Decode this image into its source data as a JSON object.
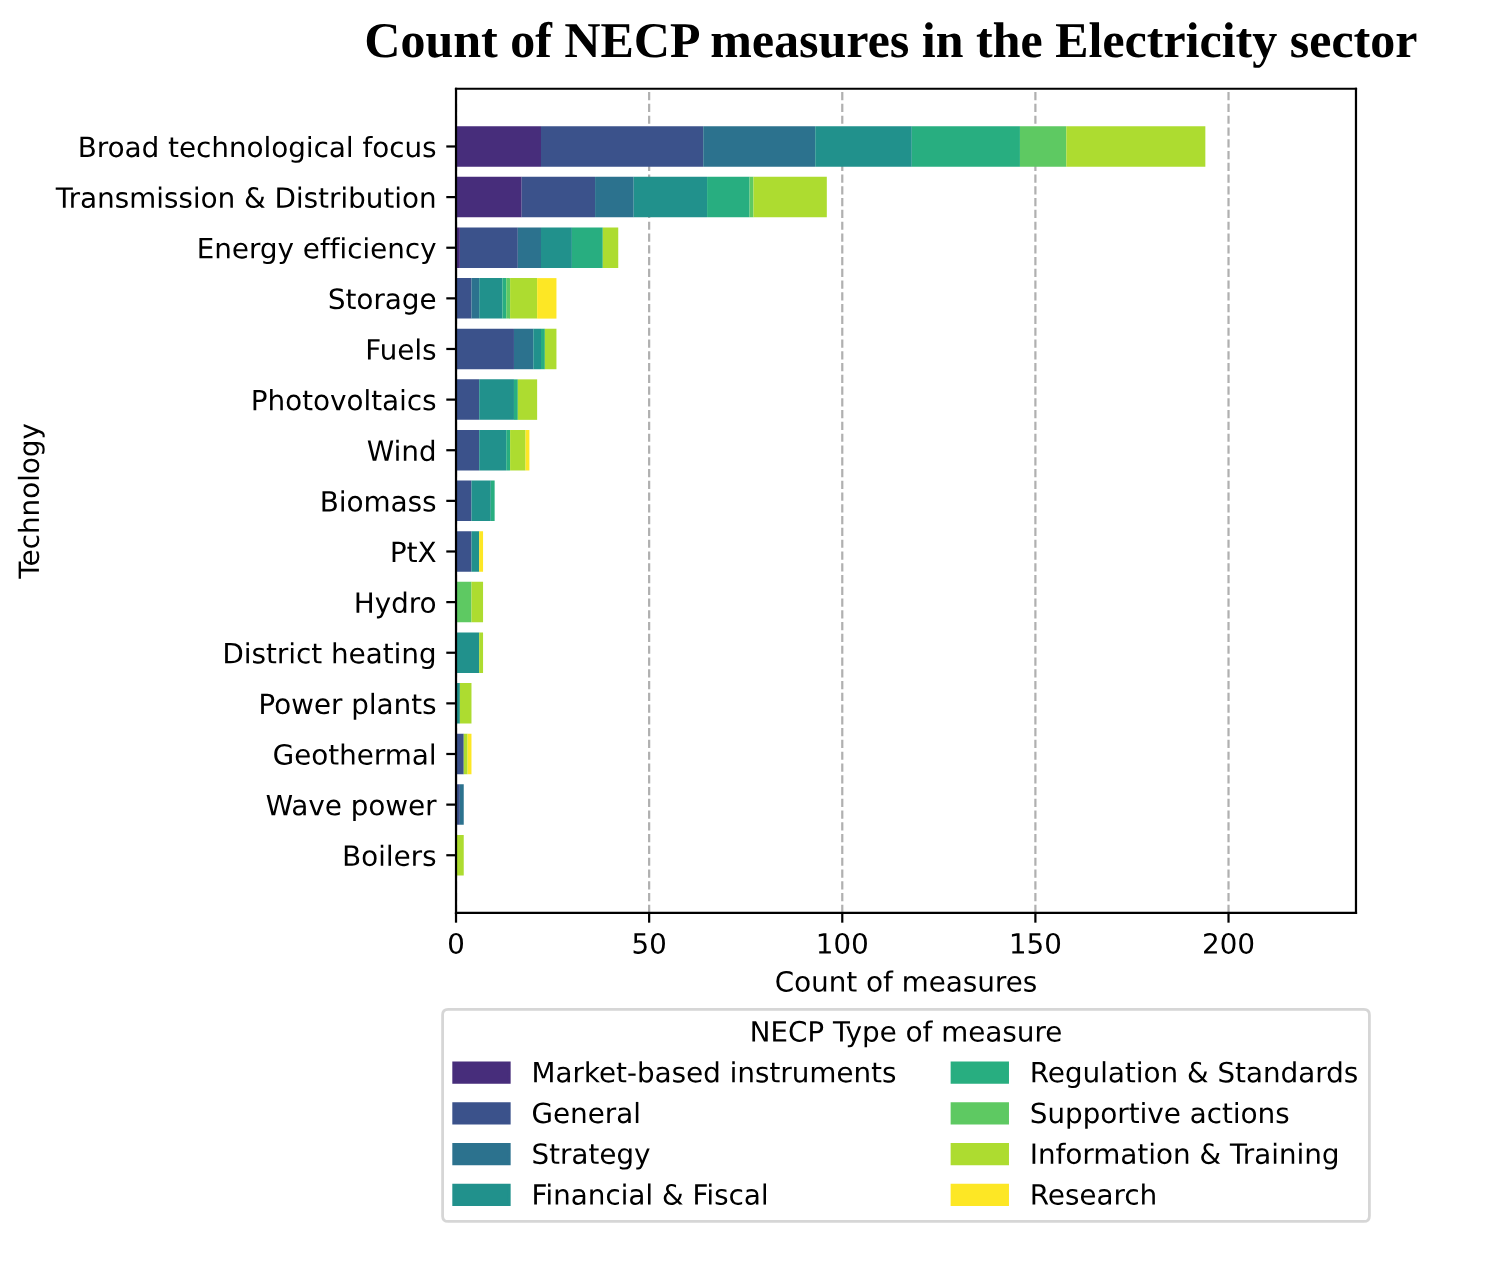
{
  "chart_data": {
    "type": "bar",
    "orientation": "horizontal",
    "stacked": true,
    "title": "Count of NECP measures in the Electricity sector",
    "xlabel": "Count of measures",
    "ylabel": "Technology",
    "legend_title": "NECP Type of measure",
    "legend": "bottom",
    "grid": "x",
    "categories": [
      "Broad technological focus",
      "Transmission & Distribution",
      "Energy efficiency",
      "Storage",
      "Fuels",
      "Photovoltaics",
      "Wind",
      "Biomass",
      "PtX",
      "Hydro",
      "District heating",
      "Power plants",
      "Geothermal",
      "Wave power",
      "Boilers"
    ],
    "xlim": [
      0,
      233
    ],
    "xticks": [
      0,
      50,
      100,
      150,
      200
    ],
    "series": [
      {
        "name": "Market-based instruments",
        "color": "#472d7b",
        "values": [
          22,
          17,
          1,
          0,
          0,
          0,
          0,
          0,
          0,
          0,
          0,
          0,
          0,
          0,
          0
        ]
      },
      {
        "name": "General",
        "color": "#3b528b",
        "values": [
          42,
          19,
          15,
          4,
          15,
          6,
          6,
          4,
          4,
          0,
          0,
          0,
          2,
          1,
          0
        ]
      },
      {
        "name": "Strategy",
        "color": "#2c728e",
        "values": [
          29,
          10,
          6,
          2,
          5,
          0,
          0,
          0,
          0,
          0,
          0,
          0,
          0,
          1,
          0
        ]
      },
      {
        "name": "Financial & Fiscal",
        "color": "#21918c",
        "values": [
          25,
          19,
          8,
          6,
          2,
          9,
          7,
          5,
          2,
          0,
          6,
          1,
          0,
          0,
          0
        ]
      },
      {
        "name": "Regulation & Standards",
        "color": "#28ae80",
        "values": [
          28,
          11,
          8,
          1,
          1,
          1,
          1,
          1,
          0,
          0,
          0,
          0,
          0,
          0,
          0
        ]
      },
      {
        "name": "Supportive actions",
        "color": "#5ec962",
        "values": [
          12,
          1,
          0,
          1,
          0,
          0,
          0,
          0,
          0,
          4,
          0,
          0,
          0,
          0,
          0
        ]
      },
      {
        "name": "Information & Training",
        "color": "#addc30",
        "values": [
          36,
          19,
          4,
          7,
          3,
          5,
          4,
          0,
          0,
          3,
          1,
          3,
          1,
          0,
          2
        ]
      },
      {
        "name": "Research",
        "color": "#fde725",
        "values": [
          0,
          0,
          0,
          5,
          0,
          0,
          1,
          0,
          1,
          0,
          0,
          0,
          1,
          0,
          0
        ]
      }
    ]
  }
}
